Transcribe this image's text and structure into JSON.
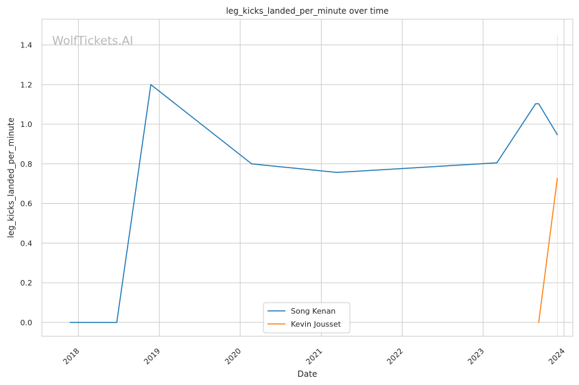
{
  "chart_data": {
    "type": "line",
    "title": "leg_kicks_landed_per_minute over time",
    "xlabel": "Date",
    "ylabel": "leg_kicks_landed_per_minute",
    "watermark": "WolfTickets.AI",
    "x_ticks": [
      "2018",
      "2019",
      "2020",
      "2021",
      "2022",
      "2023",
      "2024"
    ],
    "y_ticks": [
      "0.0",
      "0.2",
      "0.4",
      "0.6",
      "0.8",
      "1.0",
      "1.2",
      "1.4"
    ],
    "xlim": [
      "2017-07-20",
      "2024-02-10"
    ],
    "ylim": [
      -0.07,
      1.53
    ],
    "grid": true,
    "legend_position": "lower center",
    "series": [
      {
        "name": "Song Kenan",
        "color": "#1f77b4",
        "points": [
          {
            "x": "2017-11-25",
            "y": 0.0
          },
          {
            "x": "2018-06-23",
            "y": 0.0
          },
          {
            "x": "2018-11-24",
            "y": 1.2
          },
          {
            "x": "2020-02-22",
            "y": 0.8
          },
          {
            "x": "2021-03-13",
            "y": 0.757
          },
          {
            "x": "2023-03-04",
            "y": 0.805
          },
          {
            "x": "2023-08-26",
            "y": 1.103
          },
          {
            "x": "2023-09-09",
            "y": 1.103
          },
          {
            "x": "2023-12-02",
            "y": 0.947
          }
        ]
      },
      {
        "name": "Kevin Jousset",
        "color": "#ff7f0e",
        "points": [
          {
            "x": "2023-09-09",
            "y": 0.0
          },
          {
            "x": "2023-12-02",
            "y": 0.727
          }
        ]
      }
    ],
    "vline": {
      "x": "2023-12-02",
      "y_top": 1.45,
      "color": "#ffdcc0"
    }
  }
}
